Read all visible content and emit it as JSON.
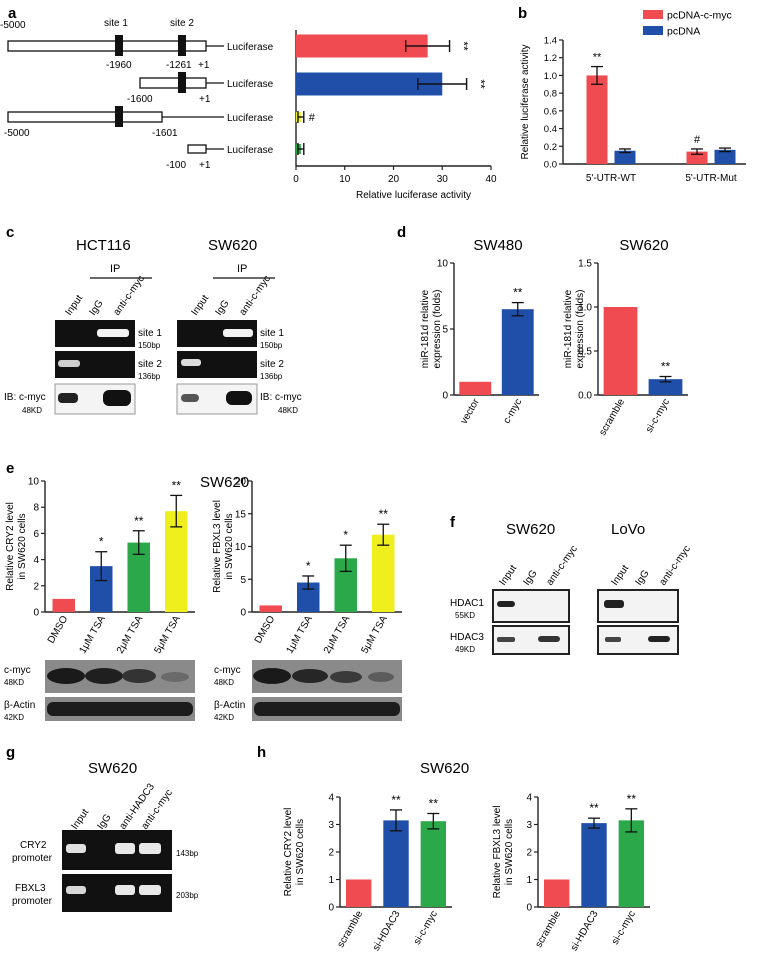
{
  "colors": {
    "red": "#f04b50",
    "blue": "#1f4fa8",
    "green": "#2aa84a",
    "yellow": "#f0ef1e",
    "band": "#1a1a1a",
    "gel": "#111111"
  },
  "panels": {
    "a": "a",
    "b": "b",
    "c": "c",
    "d": "d",
    "e": "e",
    "f": "f",
    "g": "g",
    "h": "h"
  },
  "a": {
    "top_labels": [
      "-5000",
      "site 1",
      "site 2"
    ],
    "constructs": [
      {
        "label": "Luciferase",
        "marks": [
          "-1960",
          "-1261",
          "+1"
        ]
      },
      {
        "label": "Luciferase",
        "marks": [
          "-1600",
          "+1"
        ]
      },
      {
        "label": "Luciferase",
        "marks": [
          "-5000",
          "-1601"
        ]
      },
      {
        "label": "Luciferase",
        "marks": [
          "-100",
          "+1"
        ]
      }
    ],
    "chart_data": {
      "type": "bar",
      "orientation": "horizontal",
      "values": [
        27,
        30,
        1,
        1
      ],
      "errors": [
        4.5,
        5,
        0.6,
        0.6
      ],
      "annotations": [
        "**",
        "**",
        "#",
        ""
      ],
      "xlabel": "Relative luciferase activity",
      "xlim": [
        0,
        40
      ],
      "xticks": [
        "0",
        "10",
        "20",
        "30",
        "40"
      ]
    }
  },
  "b": {
    "chart_data": {
      "type": "bar",
      "categories": [
        "5'-UTR-WT",
        "5'-UTR-Mut"
      ],
      "series": [
        {
          "name": "pcDNA-c-myc",
          "values": [
            1.0,
            0.14
          ],
          "errors": [
            0.1,
            0.03
          ]
        },
        {
          "name": "pcDNA",
          "values": [
            0.15,
            0.16
          ],
          "errors": [
            0.02,
            0.02
          ]
        }
      ],
      "annotations": [
        [
          "**",
          ""
        ],
        [
          "#",
          ""
        ]
      ],
      "ylabel": "Relative luciferase activity",
      "ylim": [
        0,
        1.4
      ],
      "yticks": [
        "0.0",
        "0.2",
        "0.4",
        "0.6",
        "0.8",
        "1.0",
        "1.2",
        "1.4"
      ]
    }
  },
  "c": {
    "gels": [
      {
        "title": "HCT116",
        "ip": "IP",
        "lanes": [
          "Input",
          "IgG",
          "anti-c-myc"
        ],
        "rows": [
          {
            "name": "site 1",
            "size": "150bp"
          },
          {
            "name": "site 2",
            "size": "136bp"
          }
        ],
        "ib": {
          "name": "IB: c-myc",
          "size": "48KD"
        }
      },
      {
        "title": "SW620",
        "ip": "IP",
        "lanes": [
          "Input",
          "IgG",
          "anti-c-myc"
        ],
        "rows": [
          {
            "name": "site 1",
            "size": "150bp"
          },
          {
            "name": "site 2",
            "size": "136bp"
          }
        ],
        "ib": {
          "name": "IB: c-myc",
          "size": "48KD"
        }
      }
    ]
  },
  "d": {
    "chart_data": [
      {
        "type": "bar",
        "title": "SW480",
        "categories": [
          "vector",
          "c-myc"
        ],
        "values": [
          1,
          6.5
        ],
        "errors": [
          0,
          0.5
        ],
        "annotations": [
          "",
          "**"
        ],
        "ylabel": "miR-181d relative expression (folds)",
        "ylim": [
          0,
          10
        ],
        "yticks": [
          "0",
          "5",
          "10"
        ]
      },
      {
        "type": "bar",
        "title": "SW620",
        "categories": [
          "scramble",
          "si-c-myc"
        ],
        "values": [
          1.0,
          0.18
        ],
        "errors": [
          0,
          0.03
        ],
        "annotations": [
          "",
          "**"
        ],
        "ylabel": "miR-181d relative expression (folds)",
        "ylim": [
          0,
          1.5
        ],
        "yticks": [
          "0.0",
          "0.5",
          "1.0",
          "1.5"
        ]
      }
    ]
  },
  "e": {
    "title": "SW620",
    "chart_data": [
      {
        "type": "bar",
        "categories": [
          "DMSO",
          "1μM TSA",
          "2μM TSA",
          "5μM TSA"
        ],
        "values": [
          1,
          3.5,
          5.3,
          7.7
        ],
        "errors": [
          0,
          1.1,
          0.9,
          1.2
        ],
        "annotations": [
          "",
          "*",
          "**",
          "**"
        ],
        "ylabel": "Relative CRY2 level in SW620 cells",
        "ylim": [
          0,
          10
        ],
        "yticks": [
          "0",
          "2",
          "4",
          "6",
          "8",
          "10"
        ]
      },
      {
        "type": "bar",
        "categories": [
          "DMSO",
          "1μM TSA",
          "2μM TSA",
          "5μM TSA"
        ],
        "values": [
          1,
          4.5,
          8.2,
          11.8
        ],
        "errors": [
          0,
          1,
          2,
          1.6
        ],
        "annotations": [
          "",
          "*",
          "*",
          "**"
        ],
        "ylabel": "Relative FBXL3 level in SW620 cells",
        "ylim": [
          0,
          20
        ],
        "yticks": [
          "0",
          "5",
          "10",
          "15",
          "20"
        ]
      }
    ],
    "blots": [
      {
        "name": "c-myc",
        "size": "48KD"
      },
      {
        "name": "β-Actin",
        "size": "42KD"
      }
    ]
  },
  "f": {
    "gels": [
      {
        "title": "SW620",
        "lanes": [
          "Input",
          "IgG",
          "anti-c-myc"
        ]
      },
      {
        "title": "LoVo",
        "lanes": [
          "Input",
          "IgG",
          "anti-c-myc"
        ]
      }
    ],
    "rows": [
      {
        "name": "HDAC1",
        "size": "55KD"
      },
      {
        "name": "HDAC3",
        "size": "49KD"
      }
    ]
  },
  "g": {
    "title": "SW620",
    "lanes": [
      "Input",
      "IgG",
      "anti-HADC3",
      "anti-c-myc"
    ],
    "rows": [
      {
        "name": "CRY2",
        "name2": "promoter",
        "size": "143bp"
      },
      {
        "name": "FBXL3",
        "name2": "promoter",
        "size": "203bp"
      }
    ]
  },
  "h": {
    "title": "SW620",
    "chart_data": [
      {
        "type": "bar",
        "categories": [
          "scramble",
          "si-HDAC3",
          "si-c-myc"
        ],
        "values": [
          1,
          3.15,
          3.12
        ],
        "errors": [
          0,
          0.38,
          0.28
        ],
        "annotations": [
          "",
          "**",
          "**"
        ],
        "ylabel": "Relative CRY2 level in SW620 cells",
        "ylim": [
          0,
          4
        ],
        "yticks": [
          "0",
          "1",
          "2",
          "3",
          "4"
        ]
      },
      {
        "type": "bar",
        "categories": [
          "scramble",
          "si-HDAC3",
          "si-c-myc"
        ],
        "values": [
          1,
          3.05,
          3.15
        ],
        "errors": [
          0,
          0.18,
          0.42
        ],
        "annotations": [
          "",
          "**",
          "**"
        ],
        "ylabel": "Relative FBXL3 level in SW620 cells",
        "ylim": [
          0,
          4
        ],
        "yticks": [
          "0",
          "1",
          "2",
          "3",
          "4"
        ]
      }
    ]
  }
}
